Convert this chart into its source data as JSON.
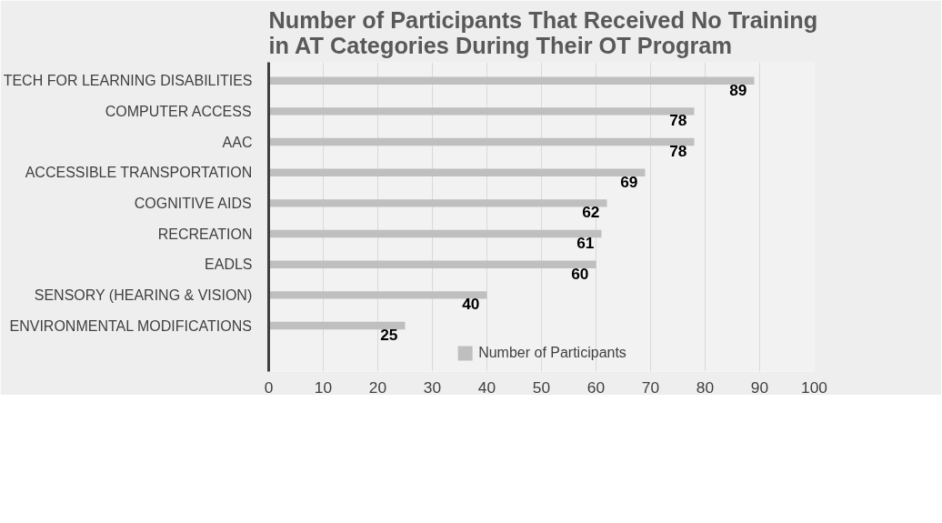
{
  "chart_data": {
    "type": "bar",
    "orientation": "horizontal",
    "title": "Number of Participants That Received No Training in AT Categories During Their OT Program",
    "categories": [
      "TECH FOR LEARNING DISABILITIES",
      "COMPUTER ACCESS",
      "AAC",
      "ACCESSIBLE TRANSPORTATION",
      "COGNITIVE AIDS",
      "RECREATION",
      "EADLS",
      "SENSORY (HEARING & VISION)",
      "ENVIRONMENTAL MODIFICATIONS"
    ],
    "series": [
      {
        "name": "Number of Participants",
        "color": "#bfbfbf",
        "values": [
          89,
          78,
          78,
          69,
          62,
          61,
          60,
          40,
          25
        ]
      }
    ],
    "xlim": [
      0,
      100
    ],
    "xticks": [
      0,
      10,
      20,
      30,
      40,
      50,
      60,
      70,
      80,
      90,
      100
    ],
    "grid": "x",
    "legend": "bottom",
    "data_labels": true
  }
}
